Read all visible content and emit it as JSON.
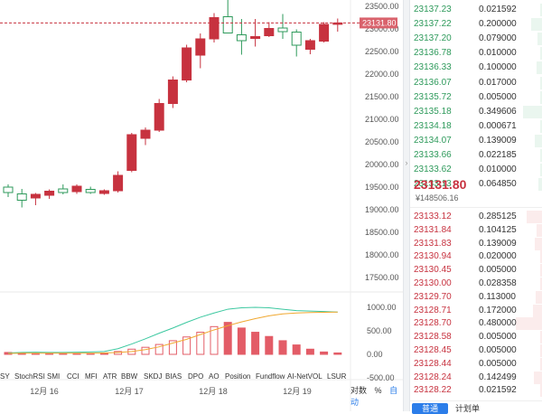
{
  "chart": {
    "price_label": "23131.80",
    "y_ticks": [
      "23500.00",
      "23000.00",
      "22500.00",
      "22000.00",
      "21500.00",
      "21000.00",
      "20500.00",
      "20000.00",
      "19500.00",
      "19000.00",
      "18500.00",
      "18000.00",
      "17500.00"
    ],
    "osc_ticks": [
      "1000.00",
      "500.00",
      "0.00",
      "-500.00"
    ],
    "indicators": [
      "SY",
      "StochRSI",
      "SMI",
      "CCI",
      "MFI",
      "ATR",
      "BBW",
      "SKDJ",
      "BIAS",
      "DPO",
      "AO",
      "Position",
      "Fundflow",
      "AI-NetVOL",
      "LSUR"
    ],
    "dates": [
      "12月 16",
      "12月 17",
      "12月 18",
      "12月 19"
    ],
    "options": {
      "log": "对数",
      "pct": "%",
      "auto": "自动"
    },
    "colors": {
      "up": "#c7323f",
      "down": "#2e9a5b",
      "ma1": "#3cc8a0",
      "ma2": "#f0a830"
    },
    "candles": [
      {
        "o": 19500,
        "h": 19560,
        "l": 19280,
        "c": 19380,
        "up": false
      },
      {
        "o": 19350,
        "h": 19460,
        "l": 19050,
        "c": 19210,
        "up": false
      },
      {
        "o": 19260,
        "h": 19370,
        "l": 19100,
        "c": 19340,
        "up": true
      },
      {
        "o": 19320,
        "h": 19450,
        "l": 19240,
        "c": 19410,
        "up": true
      },
      {
        "o": 19460,
        "h": 19560,
        "l": 19340,
        "c": 19380,
        "up": false
      },
      {
        "o": 19400,
        "h": 19560,
        "l": 19350,
        "c": 19520,
        "up": true
      },
      {
        "o": 19450,
        "h": 19510,
        "l": 19350,
        "c": 19380,
        "up": false
      },
      {
        "o": 19360,
        "h": 19450,
        "l": 19330,
        "c": 19420,
        "up": true
      },
      {
        "o": 19420,
        "h": 19850,
        "l": 19380,
        "c": 19760,
        "up": true
      },
      {
        "o": 19870,
        "h": 20700,
        "l": 19830,
        "c": 20660,
        "up": true
      },
      {
        "o": 20580,
        "h": 20820,
        "l": 20430,
        "c": 20760,
        "up": true
      },
      {
        "o": 20760,
        "h": 21450,
        "l": 20720,
        "c": 21350,
        "up": true
      },
      {
        "o": 21350,
        "h": 21950,
        "l": 21250,
        "c": 21870,
        "up": true
      },
      {
        "o": 21870,
        "h": 22650,
        "l": 21820,
        "c": 22580,
        "up": true
      },
      {
        "o": 22420,
        "h": 22900,
        "l": 22130,
        "c": 22780,
        "up": true
      },
      {
        "o": 22780,
        "h": 23350,
        "l": 22700,
        "c": 23250,
        "up": true
      },
      {
        "o": 23270,
        "h": 23820,
        "l": 22920,
        "c": 22910,
        "up": false
      },
      {
        "o": 22870,
        "h": 23220,
        "l": 22430,
        "c": 22740,
        "up": false
      },
      {
        "o": 22790,
        "h": 23220,
        "l": 22610,
        "c": 22830,
        "up": true
      },
      {
        "o": 22850,
        "h": 23150,
        "l": 22820,
        "c": 23010,
        "up": true
      },
      {
        "o": 23020,
        "h": 23330,
        "l": 22780,
        "c": 22940,
        "up": false
      },
      {
        "o": 22930,
        "h": 22990,
        "l": 22390,
        "c": 22640,
        "up": false
      },
      {
        "o": 22550,
        "h": 22780,
        "l": 22440,
        "c": 22740,
        "up": true
      },
      {
        "o": 22730,
        "h": 23150,
        "l": 22700,
        "c": 23100,
        "up": true
      },
      {
        "o": 23110,
        "h": 23230,
        "l": 22940,
        "c": 23132,
        "up": true
      }
    ],
    "osc_bars": [
      40,
      30,
      20,
      20,
      20,
      20,
      20,
      30,
      60,
      110,
      150,
      210,
      290,
      370,
      470,
      590,
      680,
      560,
      470,
      380,
      290,
      200,
      110,
      50,
      30
    ],
    "ma_fast": [
      30,
      40,
      45,
      40,
      40,
      45,
      50,
      60,
      120,
      220,
      330,
      450,
      560,
      680,
      790,
      880,
      960,
      990,
      1000,
      990,
      960,
      930,
      920,
      910,
      900
    ],
    "ma_slow": [
      20,
      25,
      25,
      25,
      25,
      25,
      25,
      30,
      40,
      60,
      100,
      160,
      240,
      320,
      420,
      520,
      610,
      690,
      760,
      820,
      860,
      880,
      890,
      895,
      900
    ]
  },
  "asks": [
    {
      "price": "23137.23",
      "qty": "0.021592"
    },
    {
      "price": "23137.22",
      "qty": "0.200000"
    },
    {
      "price": "23137.20",
      "qty": "0.079000"
    },
    {
      "price": "23136.78",
      "qty": "0.010000"
    },
    {
      "price": "23136.33",
      "qty": "0.100000"
    },
    {
      "price": "23136.07",
      "qty": "0.017000"
    },
    {
      "price": "23135.72",
      "qty": "0.005000"
    },
    {
      "price": "23135.18",
      "qty": "0.349606"
    },
    {
      "price": "23134.18",
      "qty": "0.000671"
    },
    {
      "price": "23134.07",
      "qty": "0.139009"
    },
    {
      "price": "23133.66",
      "qty": "0.022185"
    },
    {
      "price": "23133.62",
      "qty": "0.010000"
    },
    {
      "price": "23133.13",
      "qty": "0.064850"
    }
  ],
  "last": {
    "price": "23131.80",
    "fiat": "¥148506.16"
  },
  "bids": [
    {
      "price": "23133.12",
      "qty": "0.285125"
    },
    {
      "price": "23131.84",
      "qty": "0.104125"
    },
    {
      "price": "23131.83",
      "qty": "0.139009"
    },
    {
      "price": "23130.94",
      "qty": "0.020000"
    },
    {
      "price": "23130.45",
      "qty": "0.005000"
    },
    {
      "price": "23130.00",
      "qty": "0.028358"
    },
    {
      "price": "23129.70",
      "qty": "0.113000"
    },
    {
      "price": "23128.71",
      "qty": "0.172000"
    },
    {
      "price": "23128.70",
      "qty": "0.480000"
    },
    {
      "price": "23128.58",
      "qty": "0.005000"
    },
    {
      "price": "23128.45",
      "qty": "0.005000"
    },
    {
      "price": "23128.44",
      "qty": "0.005000"
    },
    {
      "price": "23128.24",
      "qty": "0.142499"
    },
    {
      "price": "23128.22",
      "qty": "0.021592"
    }
  ],
  "tabs": {
    "active": "普通",
    "other": "计划单"
  }
}
